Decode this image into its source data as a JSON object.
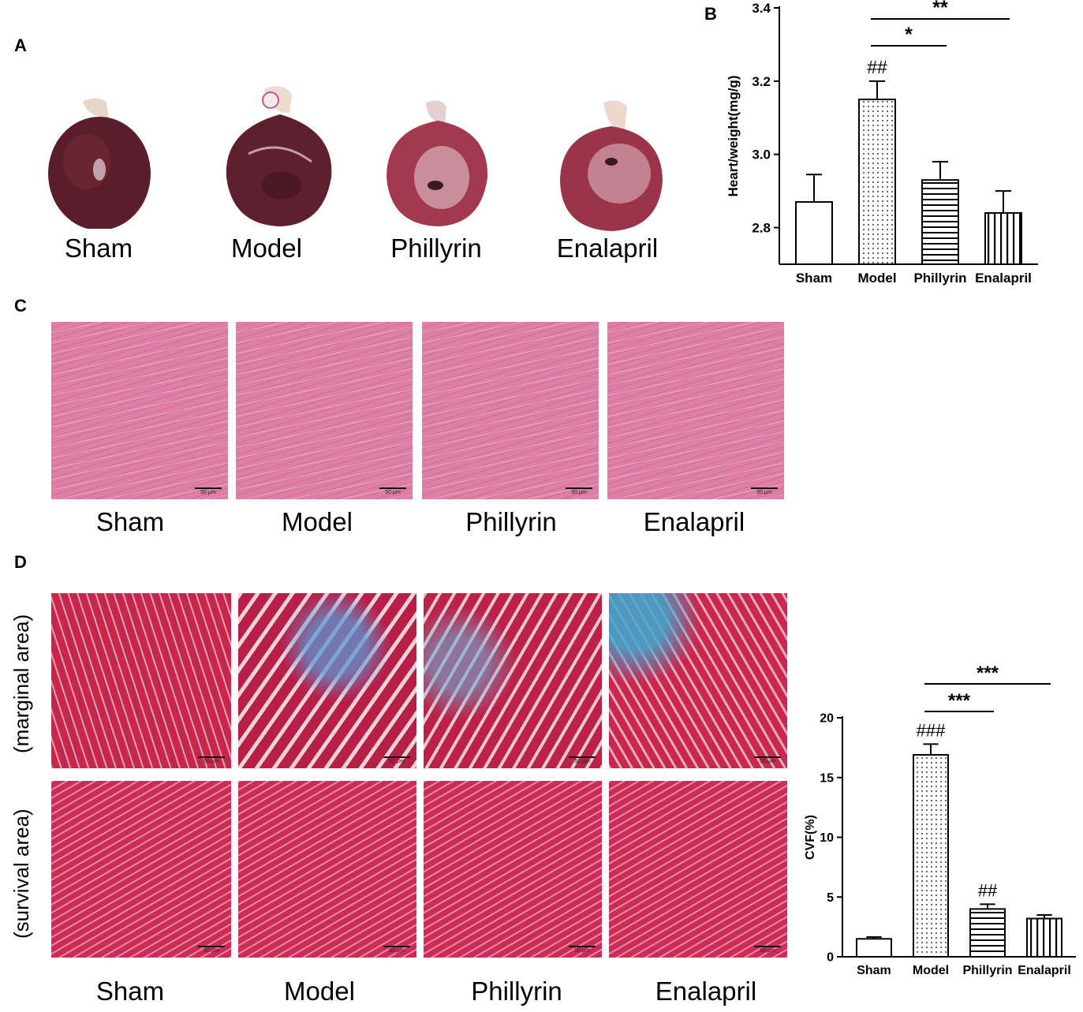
{
  "panels": {
    "a": {
      "letter": "A",
      "groups": [
        "Sham",
        "Model",
        "Phillyrin",
        "Enalapril"
      ]
    },
    "b": {
      "letter": "B",
      "significance": [
        {
          "from": 1,
          "to": 2,
          "label": "*"
        },
        {
          "from": 1,
          "to": 3,
          "label": "**"
        }
      ],
      "group_marks": [
        {
          "index": 1,
          "label": "##"
        }
      ]
    },
    "c": {
      "letter": "C",
      "groups": [
        "Sham",
        "Model",
        "Phillyrin",
        "Enalapril"
      ],
      "scale_label": "50 μm",
      "stain_color": "#e07ea3"
    },
    "d": {
      "letter": "D",
      "row_labels": [
        "(marginal area)",
        "(survival area)"
      ],
      "groups": [
        "Sham",
        "Model",
        "Phillyrin",
        "Enalapril"
      ],
      "scale_label": "50 μm",
      "significance": [
        {
          "from": 1,
          "to": 2,
          "label": "***"
        },
        {
          "from": 1,
          "to": 3,
          "label": "***"
        }
      ],
      "group_marks": [
        {
          "index": 1,
          "label": "###"
        },
        {
          "index": 2,
          "label": "##"
        }
      ]
    }
  },
  "chart_data": [
    {
      "type": "bar",
      "categories": [
        "Sham",
        "Model",
        "Phillyrin",
        "Enalapril"
      ],
      "values": [
        2.87,
        3.15,
        2.93,
        2.84
      ],
      "errors": [
        0.075,
        0.05,
        0.05,
        0.06
      ],
      "patterns": [
        "open",
        "dots",
        "horizontal-lines",
        "vertical-lines"
      ],
      "ylabel": "Heart/weight(mg/g)",
      "ylim": [
        2.7,
        3.4
      ],
      "yticks": [
        "2.8",
        "3.0",
        "3.2",
        "3.4"
      ],
      "ytick_values": [
        2.8,
        3.0,
        3.2,
        3.4
      ],
      "grid": false
    },
    {
      "type": "bar",
      "categories": [
        "Sham",
        "Model",
        "Phillyrin",
        "Enalapril"
      ],
      "values": [
        1.5,
        16.9,
        4.0,
        3.2
      ],
      "errors": [
        0.15,
        0.9,
        0.4,
        0.3
      ],
      "patterns": [
        "open",
        "dots",
        "horizontal-lines",
        "vertical-lines"
      ],
      "ylabel": "CVF(%)",
      "ylim": [
        0,
        20
      ],
      "yticks": [
        "0",
        "5",
        "10",
        "15",
        "20"
      ],
      "ytick_values": [
        0,
        5,
        10,
        15,
        20
      ],
      "grid": false
    }
  ]
}
